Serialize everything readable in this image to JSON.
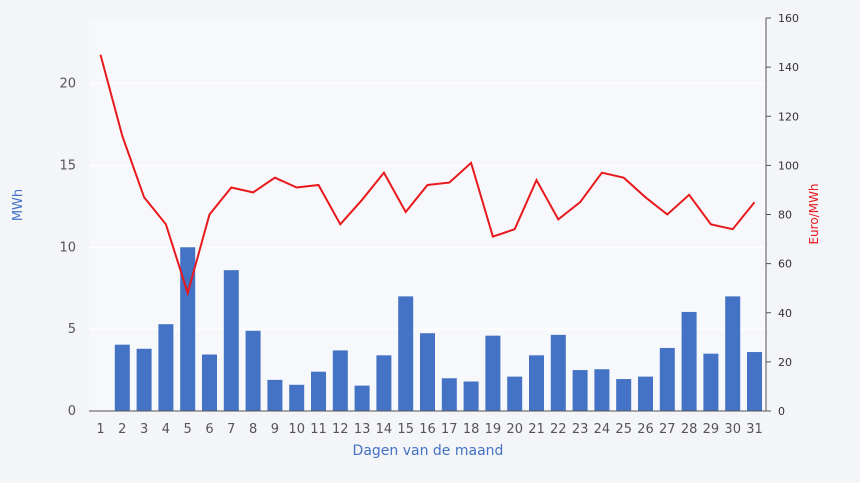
{
  "chart_data": {
    "type": "bar",
    "x": [
      1,
      2,
      3,
      4,
      5,
      6,
      7,
      8,
      9,
      10,
      11,
      12,
      13,
      14,
      15,
      16,
      17,
      18,
      19,
      20,
      21,
      22,
      23,
      24,
      25,
      26,
      27,
      28,
      29,
      30,
      31
    ],
    "xlabel": "Dagen van de maand",
    "ylabel": "MWh",
    "y2label": "Euro/MWh",
    "ylim": [
      0,
      24
    ],
    "y2lim": [
      0,
      160
    ],
    "yticks": [
      0,
      5,
      10,
      15,
      20
    ],
    "y2ticks": [
      0,
      20,
      40,
      60,
      80,
      100,
      120,
      140,
      160
    ],
    "grid": true,
    "series": [
      {
        "type": "bar",
        "axis": "left",
        "color": "#4472c4",
        "values": [
          0,
          4.05,
          3.8,
          5.3,
          10.0,
          3.45,
          8.6,
          4.9,
          1.9,
          1.6,
          2.4,
          3.7,
          1.55,
          3.4,
          7.0,
          4.75,
          2.0,
          1.8,
          4.6,
          2.1,
          3.4,
          4.65,
          2.5,
          2.55,
          1.95,
          2.1,
          3.85,
          6.05,
          3.5,
          7.0,
          3.6
        ]
      },
      {
        "type": "line",
        "axis": "right",
        "color": "#e8191c",
        "values": [
          145,
          112,
          87,
          76,
          48,
          80,
          91,
          89,
          95,
          91,
          92,
          76,
          86,
          97,
          81,
          92,
          93,
          101,
          71,
          74,
          94,
          78,
          85,
          97,
          95,
          87,
          80,
          88,
          76,
          74,
          85
        ]
      }
    ]
  }
}
